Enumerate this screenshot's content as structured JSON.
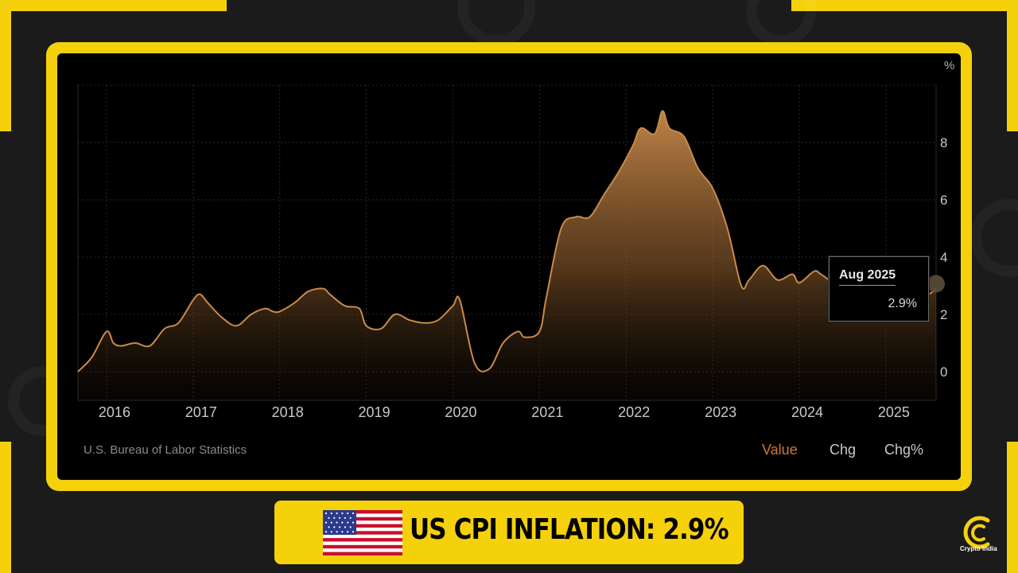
{
  "chart_data": {
    "type": "area",
    "unit_label": "%",
    "source": "U.S. Bureau of Labor Statistics",
    "x_ticks": [
      "2016",
      "2017",
      "2018",
      "2019",
      "2020",
      "2021",
      "2022",
      "2023",
      "2024",
      "2025"
    ],
    "y_ticks": [
      "0",
      "2",
      "4",
      "6",
      "8"
    ],
    "ylim": [
      -1,
      10
    ],
    "y_axis_side": "right",
    "grid": true,
    "line_color": "#c98a4b",
    "x": [
      2015.67,
      2015.83,
      2016.0,
      2016.08,
      2016.17,
      2016.33,
      2016.5,
      2016.67,
      2016.83,
      2017.0,
      2017.08,
      2017.17,
      2017.33,
      2017.5,
      2017.67,
      2017.83,
      2017.92,
      2018.0,
      2018.17,
      2018.33,
      2018.5,
      2018.58,
      2018.75,
      2018.92,
      2019.0,
      2019.17,
      2019.33,
      2019.5,
      2019.67,
      2019.83,
      2020.0,
      2020.08,
      2020.25,
      2020.42,
      2020.58,
      2020.75,
      2020.83,
      2021.0,
      2021.08,
      2021.25,
      2021.42,
      2021.58,
      2021.75,
      2021.92,
      2022.08,
      2022.17,
      2022.33,
      2022.42,
      2022.5,
      2022.67,
      2022.83,
      2023.0,
      2023.17,
      2023.33,
      2023.42,
      2023.58,
      2023.75,
      2023.92,
      2024.0,
      2024.17,
      2024.25,
      2024.42,
      2024.58,
      2024.75,
      2024.92,
      2025.0,
      2025.17,
      2025.33,
      2025.5,
      2025.58
    ],
    "values": [
      0.0,
      0.5,
      1.4,
      1.0,
      0.9,
      1.0,
      0.9,
      1.5,
      1.7,
      2.5,
      2.7,
      2.4,
      1.9,
      1.6,
      2.0,
      2.2,
      2.1,
      2.1,
      2.4,
      2.8,
      2.9,
      2.7,
      2.3,
      2.2,
      1.6,
      1.5,
      2.0,
      1.8,
      1.7,
      1.8,
      2.3,
      2.5,
      0.3,
      0.1,
      1.0,
      1.4,
      1.2,
      1.4,
      2.6,
      5.0,
      5.4,
      5.4,
      6.2,
      7.0,
      7.9,
      8.5,
      8.3,
      9.1,
      8.5,
      8.2,
      7.1,
      6.4,
      5.0,
      3.0,
      3.2,
      3.7,
      3.2,
      3.4,
      3.1,
      3.5,
      3.4,
      3.0,
      2.5,
      2.6,
      2.9,
      3.0,
      2.4,
      2.4,
      2.7,
      2.9
    ],
    "highlight": {
      "label": "Aug 2025",
      "value": "2.9%"
    }
  },
  "controls": {
    "modes": [
      "Value",
      "Chg",
      "Chg%"
    ],
    "active_mode": "Value"
  },
  "banner": {
    "text": "US CPI INFLATION: 2.9%",
    "flag": "us-flag"
  },
  "logo": {
    "text": "Crypto India"
  },
  "colors": {
    "brand_yellow": "#f5d10b",
    "panel_bg": "#000000",
    "active_mode": "#d2782f",
    "page_bg": "#1b1b1b"
  }
}
